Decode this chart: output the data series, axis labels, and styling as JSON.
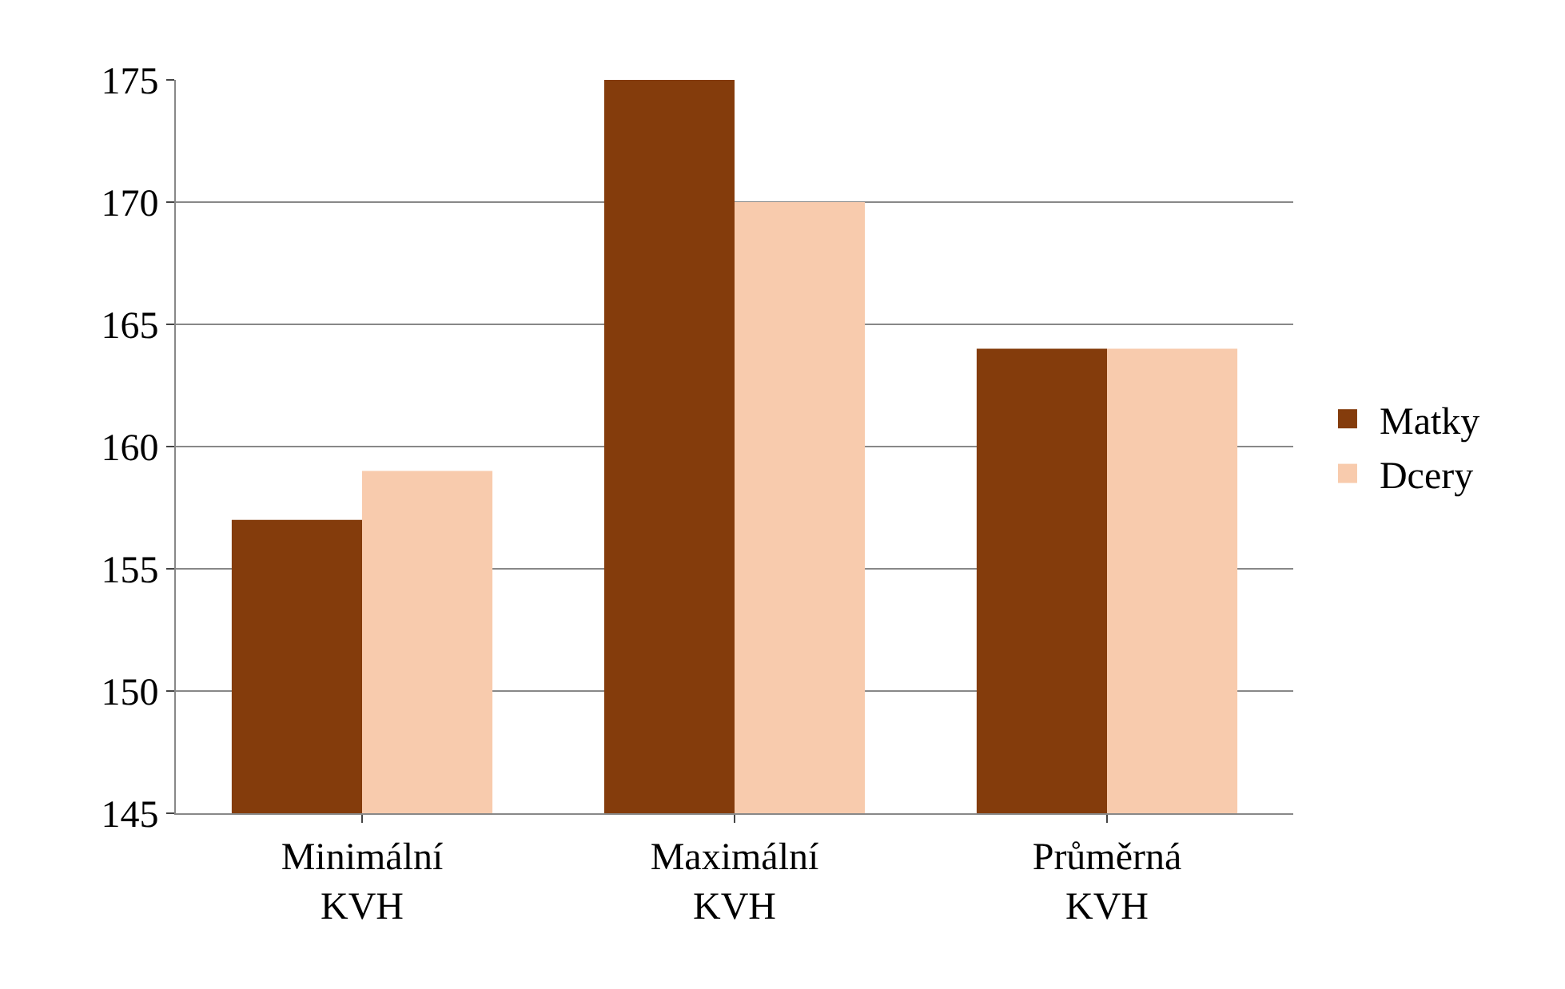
{
  "chart_data": {
    "type": "bar",
    "categories": [
      "Minimální\nKVH",
      "Maximální\nKVH",
      "Průměrná\nKVH"
    ],
    "series": [
      {
        "name": "Matky",
        "color": "#843c0c",
        "values": [
          157,
          175,
          164
        ]
      },
      {
        "name": "Dcery",
        "color": "#f8cbad",
        "values": [
          159,
          170,
          164
        ]
      }
    ],
    "ylim": [
      145,
      175
    ],
    "yticks": [
      145,
      150,
      155,
      160,
      165,
      170,
      175
    ],
    "grid": "y",
    "legend": "right"
  }
}
